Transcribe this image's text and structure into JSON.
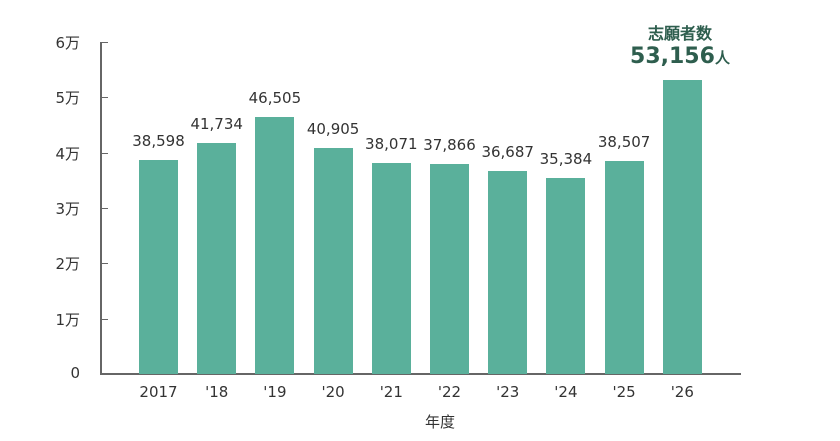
{
  "chart_data": {
    "type": "bar",
    "title": "",
    "xlabel": "年度",
    "ylabel": "",
    "categories": [
      "2017",
      "'18",
      "'19",
      "'20",
      "'21",
      "'22",
      "'23",
      "'24",
      "'25",
      "'26"
    ],
    "values": [
      38598,
      41734,
      46505,
      40905,
      38071,
      37866,
      36687,
      35384,
      38507,
      53156
    ],
    "value_labels": [
      "38,598",
      "41,734",
      "46,505",
      "40,905",
      "38,071",
      "37,866",
      "36,687",
      "35,384",
      "38,507",
      ""
    ],
    "ylim": [
      0,
      60000
    ],
    "yticks": [
      0,
      10000,
      20000,
      30000,
      40000,
      50000,
      60000
    ],
    "ytick_labels": [
      "0",
      "1万",
      "2万",
      "3万",
      "4万",
      "5万",
      "6万"
    ],
    "grid": false,
    "bar_color": "#5ab09b",
    "annotation": {
      "title": "志願者数",
      "value": "53,156",
      "unit": "人",
      "color": "#2e5e4e"
    }
  }
}
